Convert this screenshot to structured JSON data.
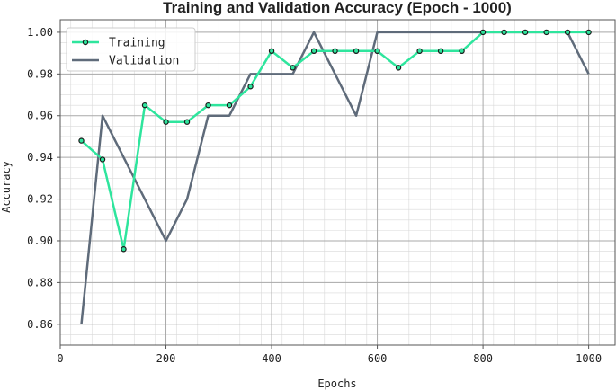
{
  "chart_data": {
    "type": "line",
    "title": "Training and Validation Accuracy (Epoch - 1000)",
    "xlabel": "Epochs",
    "ylabel": "Accuracy",
    "xlim": [
      0,
      1050
    ],
    "ylim": [
      0.85,
      1.006
    ],
    "xticks": [
      0,
      200,
      400,
      600,
      800,
      1000
    ],
    "xtick_labels": [
      "0",
      "200",
      "400",
      "600",
      "800",
      "1000"
    ],
    "yticks": [
      0.86,
      0.88,
      0.9,
      0.92,
      0.94,
      0.96,
      0.98,
      1.0
    ],
    "ytick_labels": [
      "0.86",
      "0.88",
      "0.90",
      "0.92",
      "0.94",
      "0.96",
      "0.98",
      "1.00"
    ],
    "grid": true,
    "legend_position": "top-left",
    "series": [
      {
        "name": "Training",
        "color": "#2ee59d",
        "marker": "circle",
        "x": [
          40,
          80,
          120,
          160,
          200,
          240,
          280,
          320,
          360,
          400,
          440,
          480,
          520,
          560,
          600,
          640,
          680,
          720,
          760,
          800,
          840,
          880,
          920,
          960,
          1000
        ],
        "y": [
          0.948,
          0.939,
          0.896,
          0.965,
          0.957,
          0.957,
          0.965,
          0.965,
          0.974,
          0.991,
          0.983,
          0.991,
          0.991,
          0.991,
          0.991,
          0.983,
          0.991,
          0.991,
          0.991,
          1.0,
          1.0,
          1.0,
          1.0,
          1.0,
          1.0
        ]
      },
      {
        "name": "Validation",
        "color": "#5f6b7a",
        "marker": "none",
        "x": [
          40,
          80,
          120,
          160,
          200,
          240,
          280,
          320,
          360,
          400,
          440,
          480,
          520,
          560,
          600,
          640,
          680,
          720,
          760,
          800,
          840,
          880,
          920,
          960,
          1000
        ],
        "y": [
          0.86,
          0.96,
          0.94,
          0.92,
          0.9,
          0.92,
          0.96,
          0.96,
          0.98,
          0.98,
          0.98,
          1.0,
          0.98,
          0.96,
          1.0,
          1.0,
          1.0,
          1.0,
          1.0,
          1.0,
          1.0,
          1.0,
          1.0,
          1.0,
          0.98
        ]
      }
    ]
  }
}
